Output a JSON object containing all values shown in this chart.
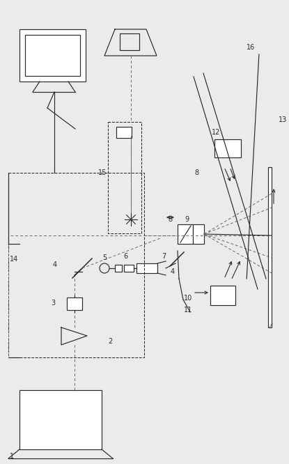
{
  "bg_color": "#ebebeb",
  "line_color": "#2a2a2a",
  "figsize": [
    4.15,
    6.66
  ],
  "dpi": 100
}
